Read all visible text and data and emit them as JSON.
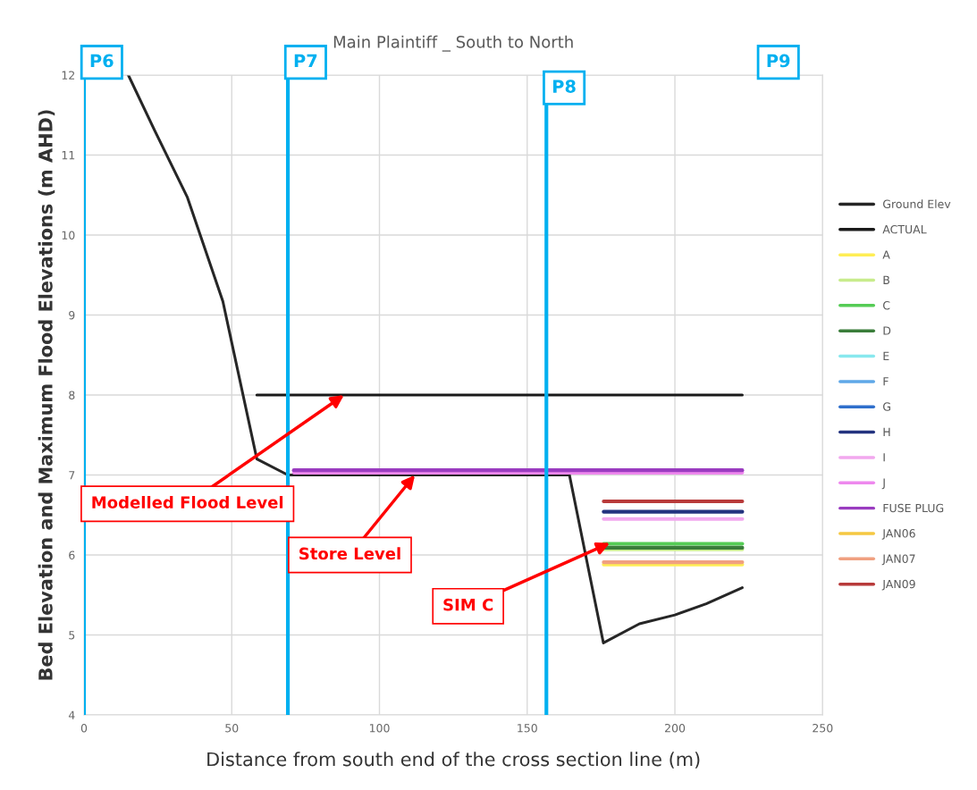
{
  "chart_data": {
    "type": "line",
    "title": "Main Plaintiff _ South to North",
    "xlabel": "Distance from south end of the cross section line (m)",
    "ylabel": "Bed Elevation and Maximum Flood Elevations (m AHD)",
    "xlim": [
      0,
      250
    ],
    "xticks": [
      0,
      50,
      100,
      150,
      200,
      250
    ],
    "ylim": [
      4,
      12
    ],
    "yticks": [
      4,
      5,
      6,
      7,
      8,
      9,
      10,
      11,
      12
    ],
    "grid": true,
    "legend": "right",
    "series": [
      {
        "name": "Ground Elev",
        "color": "#262626",
        "x": [
          15,
          24,
          35,
          47,
          58.5,
          69,
          164.3,
          175.8,
          188,
          200,
          210.6,
          222.8
        ],
        "values": [
          12,
          11.3,
          10.47,
          9.17,
          7.2,
          7.0,
          7.0,
          4.9,
          5.14,
          5.25,
          5.39,
          5.59
        ]
      },
      {
        "name": "ACTUAL",
        "color": "#1a1a1a",
        "x": [
          58.5,
          222.8
        ],
        "values": [
          8.0,
          8.0
        ]
      },
      {
        "name": "A",
        "color": "#ffee55",
        "x": [
          175.9,
          222.8
        ],
        "values": [
          5.88,
          5.88
        ]
      },
      {
        "name": "B",
        "color": "#c8ec8c",
        "x": [
          175.9,
          222.8
        ],
        "values": [
          6.07,
          6.07
        ]
      },
      {
        "name": "C",
        "color": "#55cc55",
        "x": [
          175.9,
          222.8
        ],
        "values": [
          6.14,
          6.14
        ]
      },
      {
        "name": "D",
        "color": "#3a7d3a",
        "x": [
          175.9,
          222.8
        ],
        "values": [
          6.09,
          6.09
        ]
      },
      {
        "name": "E",
        "color": "#88e8ee",
        "values": [
          null
        ]
      },
      {
        "name": "F",
        "color": "#5fa8e8",
        "values": [
          null
        ]
      },
      {
        "name": "G",
        "color": "#2f6fcc",
        "values": [
          null
        ]
      },
      {
        "name": "H",
        "color": "#23337f",
        "x": [
          175.9,
          222.8
        ],
        "values": [
          6.54,
          6.54
        ]
      },
      {
        "name": "I",
        "color": "#f2a8ee",
        "x": [
          175.9,
          222.8
        ],
        "values": [
          6.45,
          6.45
        ]
      },
      {
        "name": "J",
        "color": "#ee88ee",
        "x": [
          71,
          222.8
        ],
        "values": [
          7.03,
          7.03
        ]
      },
      {
        "name": "FUSE PLUG",
        "color": "#9a3cc0",
        "x": [
          71,
          222.8
        ],
        "values": [
          7.06,
          7.06
        ]
      },
      {
        "name": "JAN06",
        "color": "#f5c842",
        "values": [
          null
        ]
      },
      {
        "name": "JAN07",
        "color": "#f0a080",
        "x": [
          175.9,
          222.8
        ],
        "values": [
          5.91,
          5.91
        ]
      },
      {
        "name": "JAN09",
        "color": "#b83a3a",
        "x": [
          175.9,
          222.8
        ],
        "values": [
          6.67,
          6.67
        ]
      }
    ],
    "ref_lines": [
      {
        "axis": "x",
        "value": 0,
        "label": "P6",
        "color": "#00b0f0"
      },
      {
        "axis": "x",
        "value": 69,
        "label": "P7",
        "color": "#00b0f0"
      },
      {
        "axis": "x",
        "value": 156.5,
        "label": "P8",
        "color": "#00b0f0"
      }
    ],
    "annotations": [
      "P9",
      {
        "text": "Modelled Flood Level",
        "x": 88,
        "y": 8.0
      },
      {
        "text": "Store Level",
        "x": 112,
        "y": 7.0
      },
      {
        "text": "SIM C",
        "x": 178,
        "y": 6.15
      }
    ]
  }
}
